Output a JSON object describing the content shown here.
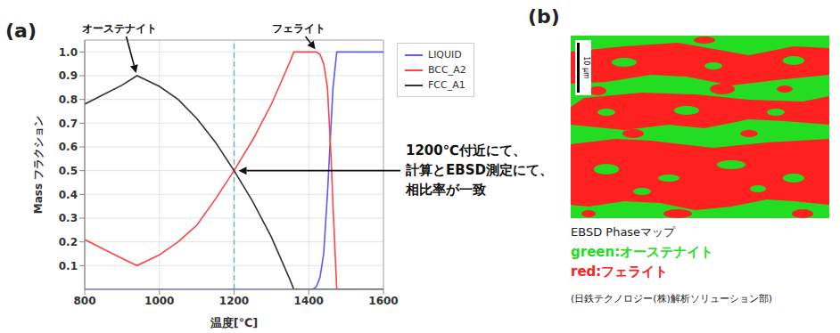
{
  "chart_data": {
    "type": "line",
    "title": "(a)",
    "x_label": "温度[℃]",
    "y_label": "Mass フラクション",
    "x": [
      800,
      850,
      900,
      940,
      1000,
      1050,
      1100,
      1150,
      1200,
      1250,
      1300,
      1350,
      1360,
      1400,
      1410,
      1420,
      1430,
      1440,
      1450,
      1460,
      1465,
      1475,
      1500,
      1600
    ],
    "series": [
      {
        "name": "LIQUID",
        "color": "#5a5aff",
        "values": [
          0,
          0,
          0,
          0,
          0,
          0,
          0,
          0,
          0,
          0,
          0,
          0,
          0,
          0,
          0,
          0.01,
          0.05,
          0.15,
          0.4,
          0.7,
          0.85,
          1.0,
          1.0,
          1.0
        ]
      },
      {
        "name": "BCC_A2",
        "color": "#ff4444",
        "values": [
          0.21,
          0.17,
          0.13,
          0.1,
          0.145,
          0.2,
          0.27,
          0.38,
          0.5,
          0.63,
          0.78,
          0.96,
          1.0,
          1.0,
          1.0,
          1.0,
          0.99,
          0.95,
          0.85,
          0.55,
          0.35,
          0,
          0,
          0
        ]
      },
      {
        "name": "FCC_A1",
        "color": "#333333",
        "values": [
          0.78,
          0.82,
          0.86,
          0.9,
          0.855,
          0.8,
          0.72,
          0.62,
          0.5,
          0.37,
          0.22,
          0.04,
          0,
          0,
          0,
          0,
          0,
          0,
          0,
          0,
          0,
          0,
          0,
          0
        ]
      }
    ],
    "xlim": [
      800,
      1600
    ],
    "xticks": [
      800,
      1000,
      1200,
      1400,
      1600
    ],
    "ylim": [
      0,
      1.05
    ],
    "yticks": [
      0.1,
      0.2,
      0.3,
      0.4,
      0.5,
      0.6,
      0.7,
      0.8,
      0.9,
      {
        "value": 1,
        "label": "1.0"
      }
    ],
    "grid": true,
    "legend": "right",
    "vlines": [
      1200
    ],
    "annotations": [
      {
        "text": "オーステナイト",
        "x": 940,
        "y": 0.9
      },
      {
        "text": "フェライト",
        "x": 1420,
        "y": 1.0
      },
      {
        "text": [
          "1200℃付近にて、",
          "計算とEBSD測定にて、",
          "相比率が一致"
        ],
        "x": 1200,
        "y": 0.5
      }
    ]
  },
  "panel_b": {
    "label": "(b)",
    "scale_bar": "10 μm",
    "caption": "EBSD Phaseマップ",
    "phase_key": [
      {
        "text": "green:オーステナイト",
        "color": "#22dd22"
      },
      {
        "text": "red:フェライト",
        "color": "#ff2020"
      }
    ],
    "credit": "(日鉄テクノロジー(株)解析ソリューション部)"
  }
}
